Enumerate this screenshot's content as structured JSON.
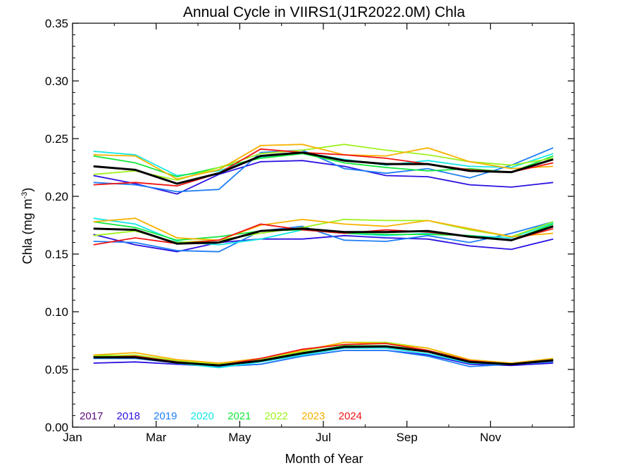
{
  "chart_data": {
    "type": "line",
    "title": "Annual Cycle in VIIRS1(J1R2022.0M) Chla",
    "xlabel": "Month of Year",
    "ylabel": "Chla (mg m-3)",
    "ylabel_parts": {
      "main": "Chla (mg m",
      "sup": "-3",
      "close": ")"
    },
    "xlim": [
      0,
      12
    ],
    "ylim": [
      0.0,
      0.35
    ],
    "x_ticks": [
      {
        "label": "Jan",
        "value": 0
      },
      {
        "label": "Mar",
        "value": 2
      },
      {
        "label": "May",
        "value": 4
      },
      {
        "label": "Jul",
        "value": 6
      },
      {
        "label": "Sep",
        "value": 8
      },
      {
        "label": "Nov",
        "value": 10
      }
    ],
    "y_ticks": [
      {
        "label": "0.00",
        "value": 0.0
      },
      {
        "label": "0.05",
        "value": 0.05
      },
      {
        "label": "0.10",
        "value": 0.1
      },
      {
        "label": "0.15",
        "value": 0.15
      },
      {
        "label": "0.20",
        "value": 0.2
      },
      {
        "label": "0.25",
        "value": 0.25
      },
      {
        "label": "0.30",
        "value": 0.3
      },
      {
        "label": "0.35",
        "value": 0.35
      }
    ],
    "x": [
      0.5,
      1.5,
      2.5,
      3.5,
      4.5,
      5.5,
      6.5,
      7.5,
      8.5,
      9.5,
      10.5,
      11.5
    ],
    "legend_placement": "bottom-left inside plot",
    "legend": [
      {
        "name": "2017",
        "color": "#5a0a78"
      },
      {
        "name": "2018",
        "color": "#2a10e0"
      },
      {
        "name": "2019",
        "color": "#1e7ef5"
      },
      {
        "name": "2020",
        "color": "#14e6e6"
      },
      {
        "name": "2021",
        "color": "#14e83c"
      },
      {
        "name": "2022",
        "color": "#9ef21c"
      },
      {
        "name": "2023",
        "color": "#f7b200"
      },
      {
        "name": "2024",
        "color": "#f01414"
      }
    ],
    "mean_color": "#000000",
    "groups": [
      {
        "band": "upper",
        "series": [
          {
            "name": "2018",
            "color": "#2a10e0",
            "values": [
              0.218,
              0.211,
              0.202,
              0.219,
              0.23,
              0.231,
              0.226,
              0.218,
              0.217,
              0.21,
              0.208,
              0.212
            ]
          },
          {
            "name": "2019",
            "color": "#1e7ef5",
            "values": [
              0.212,
              0.21,
              0.204,
              0.206,
              0.238,
              0.24,
              0.224,
              0.22,
              0.224,
              0.216,
              0.227,
              0.242
            ]
          },
          {
            "name": "2020",
            "color": "#14e6e6",
            "values": [
              0.239,
              0.236,
              0.218,
              0.222,
              0.234,
              0.238,
              0.232,
              0.227,
              0.231,
              0.226,
              0.225,
              0.237
            ]
          },
          {
            "name": "2021",
            "color": "#14e83c",
            "values": [
              0.235,
              0.229,
              0.217,
              0.225,
              0.233,
              0.237,
              0.229,
              0.225,
              0.222,
              0.224,
              0.221,
              0.235
            ]
          },
          {
            "name": "2022",
            "color": "#9ef21c",
            "values": [
              0.219,
              0.222,
              0.214,
              0.225,
              0.237,
              0.24,
              0.245,
              0.24,
              0.236,
              0.23,
              0.227,
              0.233
            ]
          },
          {
            "name": "2023",
            "color": "#f7b200",
            "values": [
              0.236,
              0.235,
              0.215,
              0.223,
              0.244,
              0.245,
              0.236,
              0.235,
              0.242,
              0.23,
              0.224,
              0.226
            ]
          },
          {
            "name": "2024",
            "color": "#f01414",
            "values": [
              0.21,
              0.212,
              0.209,
              0.22,
              0.241,
              0.238,
              0.236,
              0.233,
              0.228,
              0.223,
              0.221,
              0.229
            ]
          }
        ],
        "mean": [
          0.226,
          0.223,
          0.211,
          0.22,
          0.235,
          0.238,
          0.231,
          0.228,
          0.228,
          0.222,
          0.221,
          0.232
        ]
      },
      {
        "band": "middle",
        "series": [
          {
            "name": "2018",
            "color": "#2a10e0",
            "values": [
              0.167,
              0.158,
              0.152,
              0.16,
              0.163,
              0.163,
              0.166,
              0.164,
              0.163,
              0.157,
              0.154,
              0.163
            ]
          },
          {
            "name": "2019",
            "color": "#1e7ef5",
            "values": [
              0.161,
              0.16,
              0.153,
              0.152,
              0.17,
              0.174,
              0.162,
              0.161,
              0.166,
              0.16,
              0.168,
              0.178
            ]
          },
          {
            "name": "2020",
            "color": "#14e6e6",
            "values": [
              0.181,
              0.176,
              0.161,
              0.158,
              0.163,
              0.171,
              0.168,
              0.166,
              0.168,
              0.166,
              0.164,
              0.177
            ]
          },
          {
            "name": "2021",
            "color": "#14e83c",
            "values": [
              0.178,
              0.173,
              0.162,
              0.165,
              0.17,
              0.171,
              0.168,
              0.167,
              0.167,
              0.166,
              0.162,
              0.176
            ]
          },
          {
            "name": "2022",
            "color": "#9ef21c",
            "values": [
              0.166,
              0.17,
              0.16,
              0.162,
              0.168,
              0.173,
              0.18,
              0.179,
              0.179,
              0.171,
              0.165,
              0.178
            ]
          },
          {
            "name": "2023",
            "color": "#f7b200",
            "values": [
              0.178,
              0.181,
              0.164,
              0.162,
              0.175,
              0.18,
              0.176,
              0.174,
              0.179,
              0.172,
              0.165,
              0.168
            ]
          },
          {
            "name": "2024",
            "color": "#f01414",
            "values": [
              0.158,
              0.164,
              0.159,
              0.162,
              0.176,
              0.171,
              0.168,
              0.171,
              0.169,
              0.165,
              0.162,
              0.172
            ]
          }
        ],
        "mean": [
          0.172,
          0.171,
          0.159,
          0.16,
          0.17,
          0.172,
          0.169,
          0.169,
          0.17,
          0.165,
          0.162,
          0.174
        ]
      },
      {
        "band": "lower",
        "series": [
          {
            "name": "2018",
            "color": "#2a10e0",
            "values": [
              0.0555,
              0.0565,
              0.0545,
              0.0525,
              0.0545,
              0.0615,
              0.0665,
              0.0665,
              0.0625,
              0.0545,
              0.0535,
              0.0555
            ]
          },
          {
            "name": "2019",
            "color": "#1e7ef5",
            "values": [
              0.0595,
              0.0595,
              0.0555,
              0.0525,
              0.0545,
              0.0615,
              0.0665,
              0.0665,
              0.0615,
              0.0525,
              0.0545,
              0.0565
            ]
          },
          {
            "name": "2020",
            "color": "#14e6e6",
            "values": [
              0.0615,
              0.0615,
              0.0555,
              0.0515,
              0.0565,
              0.0625,
              0.0685,
              0.0685,
              0.0635,
              0.0555,
              0.0545,
              0.0575
            ]
          },
          {
            "name": "2021",
            "color": "#14e83c",
            "values": [
              0.0625,
              0.0615,
              0.0565,
              0.0535,
              0.0575,
              0.0645,
              0.0705,
              0.0705,
              0.0665,
              0.0565,
              0.0545,
              0.0585
            ]
          },
          {
            "name": "2022",
            "color": "#9ef21c",
            "values": [
              0.0615,
              0.0625,
              0.0575,
              0.0545,
              0.0585,
              0.0655,
              0.0735,
              0.0735,
              0.0685,
              0.0575,
              0.0555,
              0.0585
            ]
          },
          {
            "name": "2023",
            "color": "#f7b200",
            "values": [
              0.0625,
              0.0645,
              0.0585,
              0.0555,
              0.0595,
              0.0665,
              0.0735,
              0.0725,
              0.0685,
              0.0585,
              0.0555,
              0.0595
            ]
          },
          {
            "name": "2024",
            "color": "#f01414",
            "values": [
              0.0605,
              0.0615,
              0.0565,
              0.0535,
              0.0595,
              0.0675,
              0.0715,
              0.0725,
              0.0665,
              0.0575,
              0.0545,
              0.0575
            ]
          }
        ],
        "mean": [
          0.0605,
          0.0605,
          0.056,
          0.0535,
          0.0575,
          0.064,
          0.0695,
          0.07,
          0.0655,
          0.0565,
          0.0545,
          0.058
        ]
      }
    ]
  }
}
